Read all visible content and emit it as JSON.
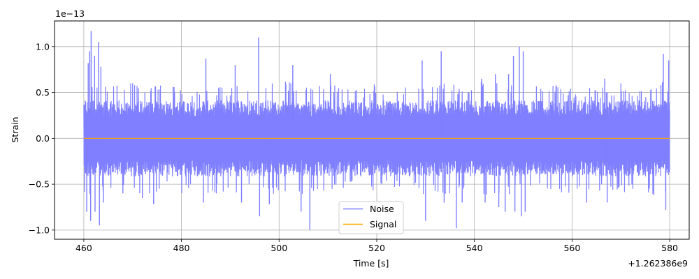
{
  "chart_data": {
    "type": "line",
    "xlabel": "Time [s]",
    "ylabel": "Strain",
    "x_offset_label": "+1.262386e9",
    "y_scale_label": "1e−13",
    "xlim": [
      454,
      584
    ],
    "ylim": [
      -1.1,
      1.28
    ],
    "x_ticks": [
      460,
      480,
      500,
      520,
      540,
      560,
      580
    ],
    "x_tick_labels": [
      "460",
      "480",
      "500",
      "520",
      "540",
      "560",
      "580"
    ],
    "y_ticks": [
      -1.0,
      -0.5,
      0.0,
      0.5,
      1.0
    ],
    "y_tick_labels": [
      "−1.0",
      "−0.5",
      "0.0",
      "0.5",
      "1.0"
    ],
    "grid": true,
    "legend_position": "lower-center",
    "series": [
      {
        "name": "Noise",
        "color": "#7f7fff",
        "x_range": [
          460,
          580
        ],
        "typical_amplitude": 0.43,
        "envelope_x": [
          460,
          461,
          462,
          463,
          464,
          466,
          468,
          470,
          472,
          474,
          476,
          478,
          480,
          482,
          484,
          486,
          488,
          490,
          492,
          494,
          496,
          498,
          500,
          502,
          504,
          506,
          508,
          510,
          512,
          514,
          516,
          518,
          520,
          522,
          524,
          526,
          528,
          530,
          532,
          533,
          534,
          536,
          537,
          538,
          540,
          542,
          544,
          546,
          548,
          549,
          550,
          552,
          554,
          556,
          558,
          560,
          562,
          564,
          566,
          568,
          570,
          572,
          574,
          576,
          578,
          579,
          580
        ],
        "envelope_max": [
          0.6,
          0.95,
          1.17,
          1.05,
          0.8,
          0.6,
          0.62,
          0.6,
          0.6,
          0.58,
          0.6,
          0.58,
          0.58,
          0.55,
          0.55,
          0.55,
          0.6,
          0.55,
          0.6,
          0.55,
          0.6,
          1.1,
          0.6,
          0.8,
          0.6,
          0.6,
          0.58,
          0.7,
          0.55,
          0.55,
          0.55,
          0.55,
          0.6,
          0.55,
          0.55,
          0.55,
          0.6,
          0.85,
          0.6,
          0.95,
          0.6,
          0.6,
          0.55,
          0.55,
          0.55,
          0.65,
          0.7,
          0.7,
          0.9,
          1.0,
          0.95,
          0.6,
          0.55,
          0.6,
          0.6,
          0.55,
          0.55,
          0.55,
          0.55,
          0.55,
          0.6,
          0.55,
          0.55,
          0.55,
          0.55,
          0.92,
          0.85
        ],
        "envelope_min": [
          -0.8,
          -0.9,
          -0.85,
          -0.95,
          -0.7,
          -0.55,
          -0.6,
          -0.55,
          -0.65,
          -0.72,
          -0.6,
          -0.55,
          -0.6,
          -0.55,
          -0.7,
          -0.6,
          -0.6,
          -0.55,
          -0.7,
          -0.6,
          -0.85,
          -0.72,
          -0.6,
          -0.6,
          -0.8,
          -1.0,
          -0.6,
          -0.55,
          -0.6,
          -0.55,
          -0.55,
          -0.55,
          -0.6,
          -0.55,
          -0.55,
          -0.55,
          -0.6,
          -0.9,
          -0.6,
          -0.7,
          -0.6,
          -0.98,
          -0.6,
          -0.6,
          -0.6,
          -0.7,
          -0.7,
          -0.75,
          -0.8,
          -0.85,
          -0.8,
          -0.6,
          -0.6,
          -0.6,
          -0.6,
          -0.6,
          -0.6,
          -0.7,
          -0.6,
          -0.7,
          -0.6,
          -0.6,
          -0.6,
          -0.6,
          -0.7,
          -0.78,
          -0.6
        ],
        "spikes": [
          {
            "x": 460.6,
            "y": -0.8
          },
          {
            "x": 460.9,
            "y": 0.82
          },
          {
            "x": 461.2,
            "y": 0.95
          },
          {
            "x": 461.4,
            "y": -0.9
          },
          {
            "x": 461.5,
            "y": 1.17
          },
          {
            "x": 462.2,
            "y": 0.9
          },
          {
            "x": 462.3,
            "y": -0.8
          },
          {
            "x": 463.0,
            "y": 1.05
          },
          {
            "x": 463.2,
            "y": -0.95
          },
          {
            "x": 463.5,
            "y": 0.78
          },
          {
            "x": 464.0,
            "y": -0.7
          },
          {
            "x": 468.0,
            "y": -0.6
          },
          {
            "x": 472.0,
            "y": -0.65
          },
          {
            "x": 474.3,
            "y": -0.72
          },
          {
            "x": 484.5,
            "y": -0.7
          },
          {
            "x": 485.0,
            "y": 0.87
          },
          {
            "x": 491.0,
            "y": 0.8
          },
          {
            "x": 492.3,
            "y": -0.7
          },
          {
            "x": 495.8,
            "y": 1.1
          },
          {
            "x": 496.0,
            "y": -0.85
          },
          {
            "x": 498.0,
            "y": -0.72
          },
          {
            "x": 502.8,
            "y": 0.8
          },
          {
            "x": 504.5,
            "y": -0.8
          },
          {
            "x": 506.3,
            "y": -1.0
          },
          {
            "x": 510.5,
            "y": 0.7
          },
          {
            "x": 529.3,
            "y": 0.85
          },
          {
            "x": 530.0,
            "y": -0.9
          },
          {
            "x": 533.2,
            "y": 0.95
          },
          {
            "x": 533.8,
            "y": -0.7
          },
          {
            "x": 536.3,
            "y": -0.98
          },
          {
            "x": 537.5,
            "y": -0.7
          },
          {
            "x": 541.5,
            "y": 0.65
          },
          {
            "x": 542.2,
            "y": -0.7
          },
          {
            "x": 544.3,
            "y": 0.7
          },
          {
            "x": 545.0,
            "y": -0.75
          },
          {
            "x": 546.3,
            "y": -0.8
          },
          {
            "x": 547.0,
            "y": 0.7
          },
          {
            "x": 548.0,
            "y": 0.9
          },
          {
            "x": 548.3,
            "y": -0.8
          },
          {
            "x": 549.2,
            "y": 1.0
          },
          {
            "x": 549.6,
            "y": -0.85
          },
          {
            "x": 550.0,
            "y": 0.95
          },
          {
            "x": 550.4,
            "y": -0.8
          },
          {
            "x": 563.0,
            "y": -0.7
          },
          {
            "x": 566.7,
            "y": 0.65
          },
          {
            "x": 567.2,
            "y": -0.7
          },
          {
            "x": 578.7,
            "y": 0.92
          },
          {
            "x": 579.2,
            "y": -0.78
          },
          {
            "x": 579.8,
            "y": 0.85
          }
        ]
      },
      {
        "name": "Signal",
        "color": "#ffa500",
        "x": [
          460,
          580
        ],
        "y": [
          0.0,
          0.0
        ]
      }
    ]
  }
}
